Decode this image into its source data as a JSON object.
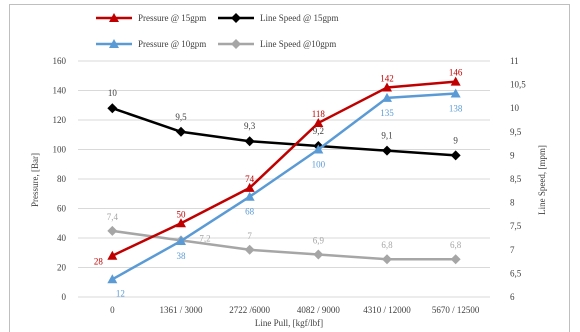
{
  "chart_data": {
    "type": "line",
    "xlabel": "Line Pull, [kgf/lbf]",
    "ylabel": "Pressure, [Bar]",
    "y2label": "Line Speed, [mpm]",
    "categories": [
      "0",
      "1361 / 3000",
      "2722 /6000",
      "4082 / 9000",
      "4310 / 12000",
      "5670 / 12500"
    ],
    "ylim": [
      0,
      160
    ],
    "y_ticks": [
      "0",
      "20",
      "40",
      "60",
      "80",
      "100",
      "120",
      "140",
      "160"
    ],
    "y2lim": [
      6,
      11
    ],
    "y2_ticks": [
      "6",
      "6,5",
      "7",
      "7,5",
      "8",
      "8,5",
      "9",
      "9,5",
      "10",
      "10,5",
      "11"
    ],
    "grid": "horizontal",
    "legend_position": "top",
    "series": [
      {
        "name": "Pressure @ 15gpm",
        "axis": "left",
        "color": "#c00000",
        "marker": "triangle",
        "values": [
          28,
          50,
          74,
          118,
          142,
          146
        ],
        "labels": [
          "28",
          "50",
          "74",
          "118",
          "142",
          "146"
        ]
      },
      {
        "name": "Pressure @ 10gpm",
        "axis": "left",
        "color": "#5b9bd5",
        "marker": "triangle",
        "values": [
          12,
          38,
          68,
          100,
          135,
          138
        ],
        "labels": [
          "12",
          "38",
          "68",
          "100",
          "135",
          "138"
        ]
      },
      {
        "name": "Line Speed @ 15gpm",
        "axis": "right",
        "color": "#000000",
        "marker": "diamond",
        "values": [
          10,
          9.5,
          9.3,
          9.2,
          9.1,
          9
        ],
        "labels": [
          "10",
          "9,5",
          "9,3",
          "9,2",
          "9,1",
          "9"
        ]
      },
      {
        "name": "Line Speed @10gpm",
        "axis": "right",
        "color": "#a6a6a6",
        "marker": "diamond",
        "values": [
          7.4,
          7.2,
          7,
          6.9,
          6.8,
          6.8
        ],
        "labels": [
          "7,4",
          "7,2",
          "7",
          "6,9",
          "6,8",
          "6,8"
        ]
      }
    ]
  }
}
